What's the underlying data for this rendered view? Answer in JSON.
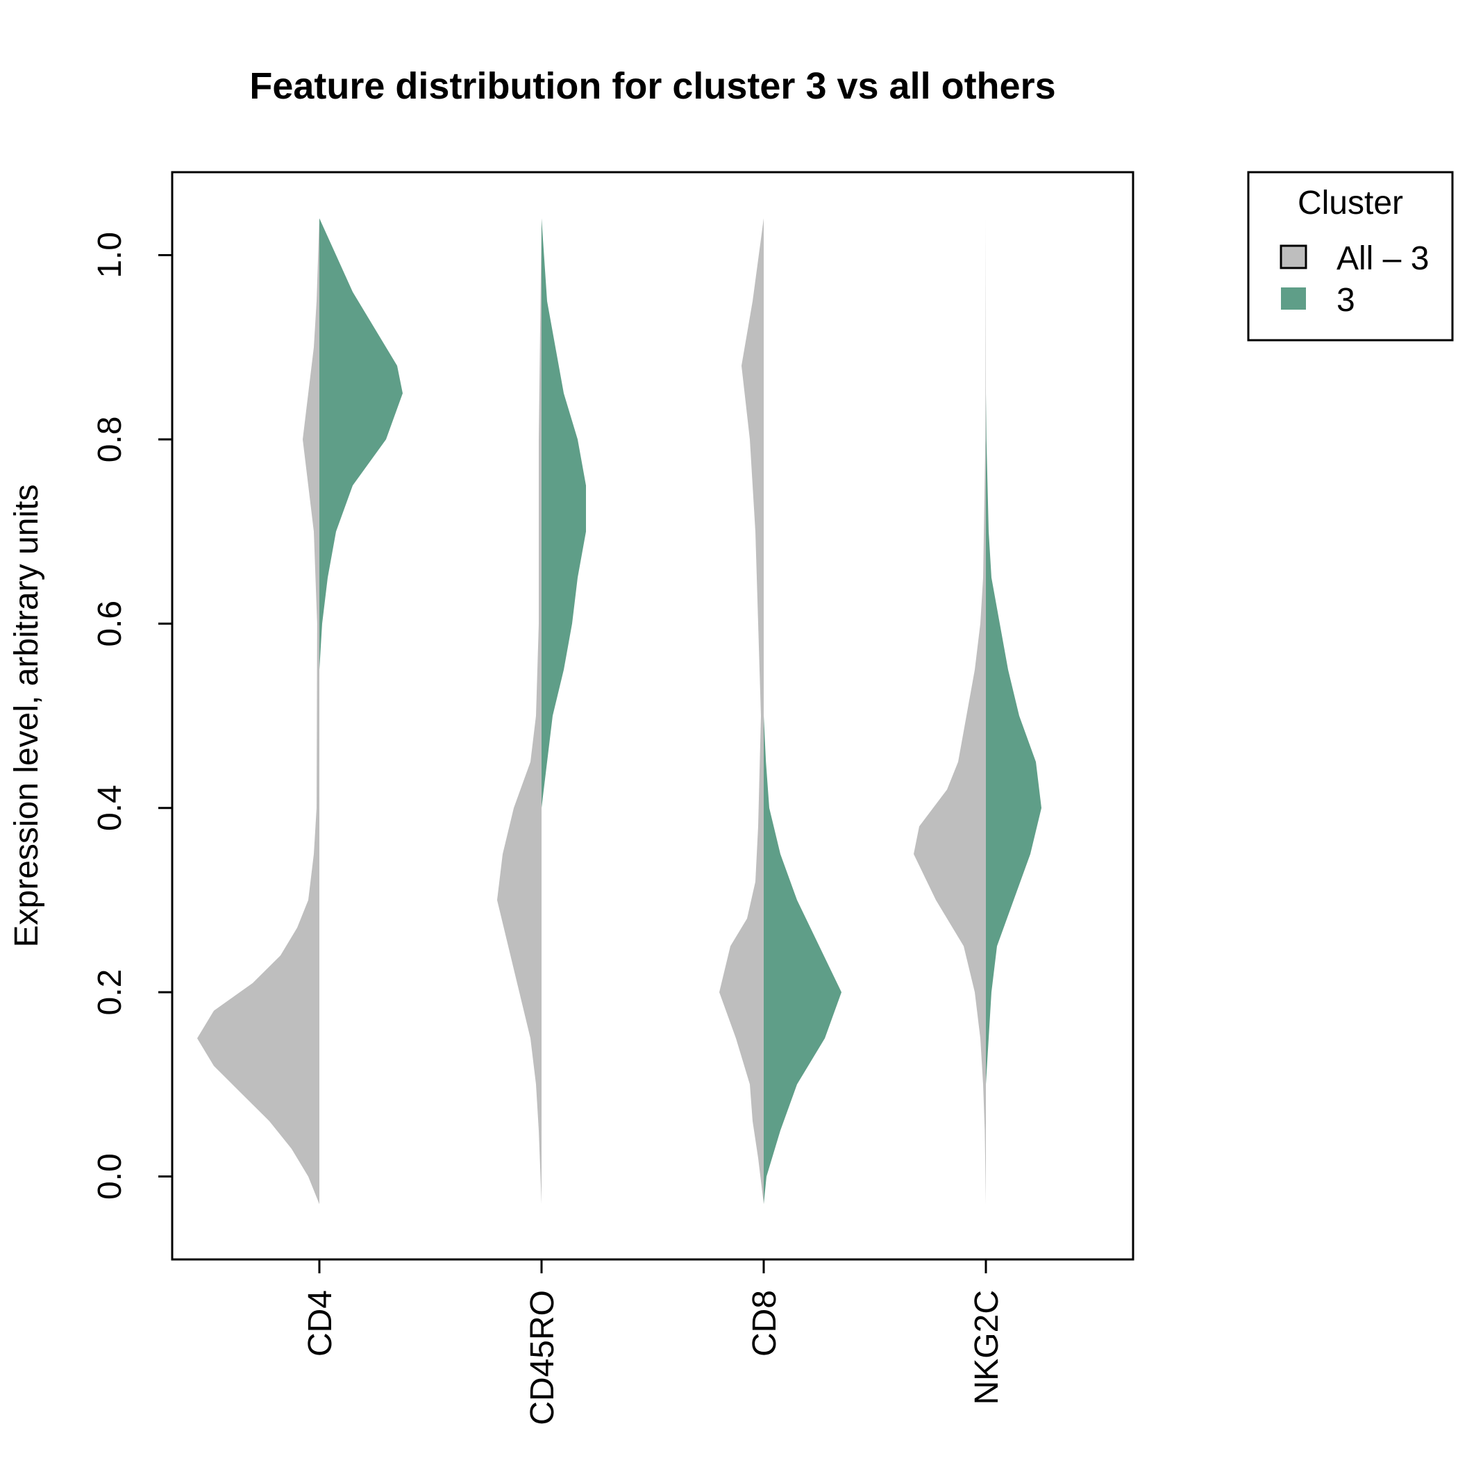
{
  "chart_data": {
    "type": "violin",
    "title": "Feature distribution for cluster 3 vs all others",
    "ylabel": "Expression level, arbitrary units",
    "xlabel": "",
    "categories": [
      "CD4",
      "CD45RO",
      "CD8",
      "NKG2C"
    ],
    "ylim": [
      -0.09,
      1.09
    ],
    "yticks": [
      0.0,
      0.2,
      0.4,
      0.6,
      0.8,
      1.0
    ],
    "ytick_labels": [
      "0.0",
      "0.2",
      "0.4",
      "0.6",
      "0.8",
      "1.0"
    ],
    "grid": false,
    "legend": {
      "title": "Cluster",
      "position": "top-right outside",
      "entries": [
        "All – 3",
        "3"
      ]
    },
    "series": [
      {
        "name": "All – 3",
        "color": "#bebebe",
        "side": "left",
        "density": {
          "CD4": [
            [
              -0.03,
              0.0
            ],
            [
              0.0,
              0.02
            ],
            [
              0.03,
              0.05
            ],
            [
              0.06,
              0.09
            ],
            [
              0.09,
              0.14
            ],
            [
              0.12,
              0.19
            ],
            [
              0.15,
              0.22
            ],
            [
              0.18,
              0.19
            ],
            [
              0.21,
              0.12
            ],
            [
              0.24,
              0.07
            ],
            [
              0.27,
              0.04
            ],
            [
              0.3,
              0.02
            ],
            [
              0.35,
              0.01
            ],
            [
              0.4,
              0.005
            ],
            [
              0.6,
              0.004
            ],
            [
              0.7,
              0.01
            ],
            [
              0.75,
              0.02
            ],
            [
              0.8,
              0.03
            ],
            [
              0.85,
              0.02
            ],
            [
              0.9,
              0.01
            ],
            [
              0.95,
              0.005
            ],
            [
              1.04,
              0.0
            ]
          ],
          "CD45RO": [
            [
              -0.03,
              0.0
            ],
            [
              0.05,
              0.005
            ],
            [
              0.1,
              0.01
            ],
            [
              0.15,
              0.02
            ],
            [
              0.2,
              0.04
            ],
            [
              0.25,
              0.06
            ],
            [
              0.3,
              0.08
            ],
            [
              0.35,
              0.07
            ],
            [
              0.4,
              0.05
            ],
            [
              0.45,
              0.02
            ],
            [
              0.5,
              0.01
            ],
            [
              0.6,
              0.005
            ],
            [
              0.8,
              0.005
            ],
            [
              1.04,
              0.0
            ]
          ],
          "CD8": [
            [
              -0.03,
              0.0
            ],
            [
              0.02,
              0.01
            ],
            [
              0.06,
              0.02
            ],
            [
              0.1,
              0.025
            ],
            [
              0.15,
              0.05
            ],
            [
              0.2,
              0.08
            ],
            [
              0.25,
              0.06
            ],
            [
              0.28,
              0.03
            ],
            [
              0.32,
              0.015
            ],
            [
              0.38,
              0.01
            ],
            [
              0.5,
              0.005
            ],
            [
              0.6,
              0.01
            ],
            [
              0.7,
              0.015
            ],
            [
              0.8,
              0.025
            ],
            [
              0.88,
              0.04
            ],
            [
              0.95,
              0.02
            ],
            [
              1.04,
              0.0
            ]
          ],
          "NKG2C": [
            [
              -0.03,
              0.0
            ],
            [
              0.05,
              0.002
            ],
            [
              0.1,
              0.005
            ],
            [
              0.15,
              0.01
            ],
            [
              0.2,
              0.02
            ],
            [
              0.25,
              0.04
            ],
            [
              0.3,
              0.09
            ],
            [
              0.35,
              0.13
            ],
            [
              0.38,
              0.12
            ],
            [
              0.42,
              0.07
            ],
            [
              0.45,
              0.05
            ],
            [
              0.5,
              0.035
            ],
            [
              0.55,
              0.02
            ],
            [
              0.6,
              0.01
            ],
            [
              0.65,
              0.005
            ],
            [
              0.8,
              0.001
            ],
            [
              1.04,
              0.0
            ]
          ]
        }
      },
      {
        "name": "3",
        "color": "#5f9e88",
        "side": "right",
        "density": {
          "CD4": [
            [
              0.55,
              0.0
            ],
            [
              0.6,
              0.005
            ],
            [
              0.65,
              0.015
            ],
            [
              0.7,
              0.03
            ],
            [
              0.75,
              0.06
            ],
            [
              0.8,
              0.12
            ],
            [
              0.85,
              0.15
            ],
            [
              0.88,
              0.14
            ],
            [
              0.92,
              0.1
            ],
            [
              0.96,
              0.06
            ],
            [
              1.0,
              0.03
            ],
            [
              1.04,
              0.0
            ]
          ],
          "CD45RO": [
            [
              0.4,
              0.0
            ],
            [
              0.45,
              0.01
            ],
            [
              0.5,
              0.02
            ],
            [
              0.55,
              0.04
            ],
            [
              0.6,
              0.055
            ],
            [
              0.65,
              0.065
            ],
            [
              0.7,
              0.08
            ],
            [
              0.75,
              0.08
            ],
            [
              0.8,
              0.065
            ],
            [
              0.85,
              0.04
            ],
            [
              0.9,
              0.025
            ],
            [
              0.95,
              0.01
            ],
            [
              1.04,
              0.0
            ]
          ],
          "CD8": [
            [
              -0.03,
              0.0
            ],
            [
              0.0,
              0.005
            ],
            [
              0.05,
              0.03
            ],
            [
              0.1,
              0.06
            ],
            [
              0.15,
              0.11
            ],
            [
              0.2,
              0.14
            ],
            [
              0.25,
              0.1
            ],
            [
              0.3,
              0.06
            ],
            [
              0.35,
              0.03
            ],
            [
              0.4,
              0.01
            ],
            [
              0.45,
              0.004
            ],
            [
              0.5,
              0.0
            ]
          ],
          "NKG2C": [
            [
              0.1,
              0.0
            ],
            [
              0.2,
              0.01
            ],
            [
              0.25,
              0.02
            ],
            [
              0.3,
              0.05
            ],
            [
              0.35,
              0.08
            ],
            [
              0.4,
              0.1
            ],
            [
              0.45,
              0.09
            ],
            [
              0.5,
              0.06
            ],
            [
              0.55,
              0.04
            ],
            [
              0.6,
              0.025
            ],
            [
              0.65,
              0.01
            ],
            [
              0.7,
              0.005
            ],
            [
              0.8,
              0.001
            ],
            [
              0.85,
              0.0
            ]
          ]
        }
      }
    ]
  }
}
